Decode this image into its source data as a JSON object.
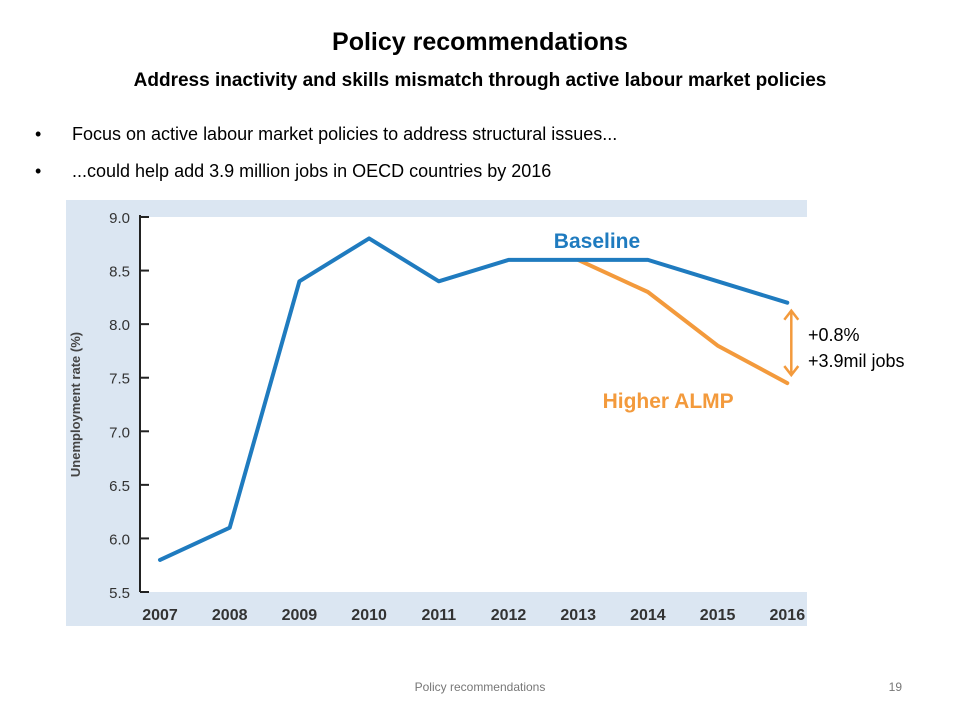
{
  "slide": {
    "title": "Policy recommendations",
    "subtitle": "Address inactivity and skills mismatch through active labour market policies",
    "bullets": [
      "Focus on active labour market policies to address structural issues...",
      "...could help add 3.9 million jobs in OECD countries by 2016"
    ],
    "bullet_glyph": "•",
    "annotation": [
      "+0.8%",
      "+3.9mil jobs"
    ],
    "footer": "Policy recommendations",
    "page_number": "19"
  },
  "chart_data": {
    "type": "line",
    "ylabel": "Unemployment rate (%)",
    "xlabel": "",
    "categories": [
      "2007",
      "2008",
      "2009",
      "2010",
      "2011",
      "2012",
      "2013",
      "2014",
      "2015",
      "2016"
    ],
    "ylim": [
      5.5,
      9.0
    ],
    "yticks": [
      "5.5",
      "6.0",
      "6.5",
      "7.0",
      "7.5",
      "8.0",
      "8.5",
      "9.0"
    ],
    "series": [
      {
        "name": "Baseline",
        "color": "#1f7bbf",
        "values": [
          5.8,
          6.1,
          8.4,
          8.8,
          8.4,
          8.6,
          8.6,
          8.6,
          8.4,
          8.2
        ]
      },
      {
        "name": "Higher ALMP",
        "color": "#f39a3c",
        "values": [
          null,
          null,
          null,
          null,
          null,
          null,
          8.6,
          8.3,
          7.8,
          7.45
        ]
      }
    ],
    "colors": {
      "panel_background": "#dbe6f2",
      "annotation_arrow": "#f39a3c"
    },
    "grid": false,
    "legend": "inline labels"
  }
}
